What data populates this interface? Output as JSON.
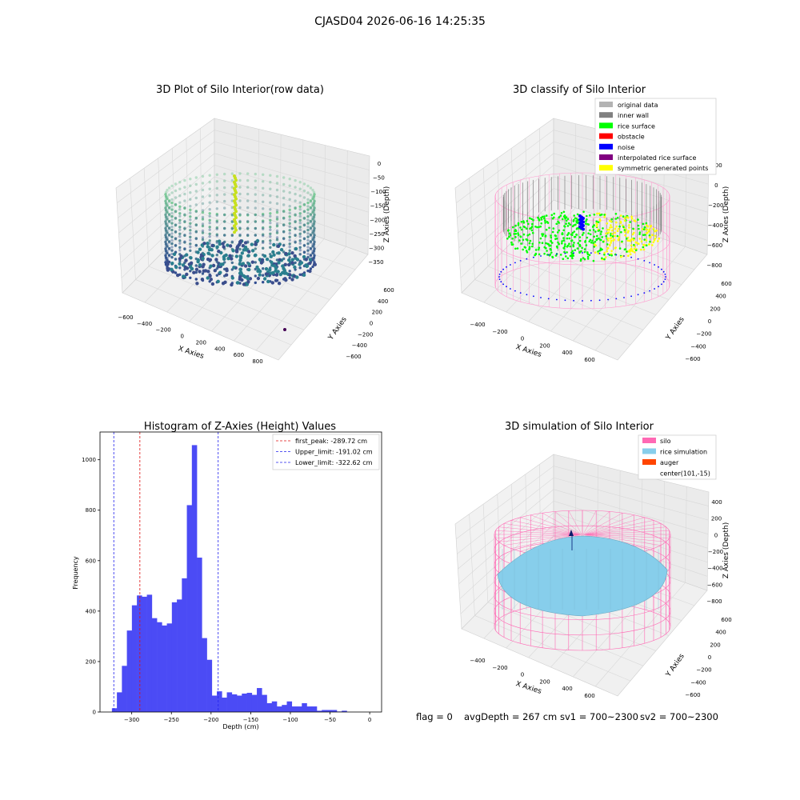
{
  "suptitle": "CJASD04 2026-06-16 14:25:35",
  "colors": {
    "histogram_bars": "#4b4bf5",
    "first_peak_line": "#e01010",
    "limit_lines": "#2020ee",
    "original_data": "#b3b3b3",
    "inner_wall": "#808080",
    "rice_surface": "#00ff00",
    "obstacle": "#ff0000",
    "noise": "#0000ff",
    "interpolated_rice_surface": "#800080",
    "symmetric_generated_points": "#ffff00",
    "silo": "#ff69b4",
    "rice_simulation": "#87ceeb",
    "auger": "#ff4500"
  },
  "panels": {
    "raw": {
      "title": "3D Plot of Silo Interior(row data)",
      "xlabel": "X Axies",
      "ylabel": "Y Axies",
      "zlabel": "Z Axies (Depth)",
      "x_ticks": [
        "−600",
        "−400",
        "−200",
        "0",
        "200",
        "400",
        "600",
        "800"
      ],
      "y_ticks": [
        "−600",
        "−400",
        "−200",
        "0",
        "200",
        "400",
        "600"
      ],
      "z_ticks": [
        "0",
        "−50",
        "−100",
        "−150",
        "−200",
        "−250",
        "−300",
        "−350"
      ]
    },
    "classify": {
      "title": "3D classify of Silo Interior",
      "xlabel": "X Axies",
      "ylabel": "Y Axies",
      "zlabel": "Z Axies (Depth)",
      "x_ticks": [
        "−400",
        "−200",
        "0",
        "200",
        "400",
        "600"
      ],
      "y_ticks": [
        "−600",
        "−400",
        "−200",
        "0",
        "200",
        "400",
        "600"
      ],
      "z_ticks": [
        "200",
        "0",
        "−200",
        "−400",
        "−600",
        "−800"
      ],
      "legend": [
        {
          "label": "original data",
          "color_key": "original_data"
        },
        {
          "label": "inner wall",
          "color_key": "inner_wall"
        },
        {
          "label": "rice surface",
          "color_key": "rice_surface"
        },
        {
          "label": "obstacle",
          "color_key": "obstacle"
        },
        {
          "label": "noise",
          "color_key": "noise"
        },
        {
          "label": "interpolated rice surface",
          "color_key": "interpolated_rice_surface"
        },
        {
          "label": "symmetric generated points",
          "color_key": "symmetric_generated_points"
        }
      ]
    },
    "simulation": {
      "title": "3D simulation of Silo Interior",
      "xlabel": "X Axies",
      "ylabel": "Y Axies",
      "zlabel": "Z Axies (Depth)",
      "x_ticks": [
        "−400",
        "−200",
        "0",
        "200",
        "400",
        "600"
      ],
      "y_ticks": [
        "−600",
        "−400",
        "−200",
        "0",
        "200",
        "400",
        "600"
      ],
      "z_ticks": [
        "400",
        "200",
        "0",
        "−200",
        "−400",
        "−600",
        "−800"
      ],
      "legend": [
        {
          "label": "silo",
          "color_key": "silo"
        },
        {
          "label": "rice simulation",
          "color_key": "rice_simulation"
        },
        {
          "label": "auger",
          "color_key": "auger"
        },
        {
          "label": "center(101,-15)",
          "color_key": ""
        }
      ]
    }
  },
  "status_line": {
    "flag": "flag = 0",
    "avg_depth": "avgDepth = 267 cm",
    "sv1": "sv1 = 700~2300",
    "sv2": "sv2 = 700~2300"
  },
  "chart_data": [
    {
      "type": "bar",
      "title": "Histogram of Z-Axies (Height) Values",
      "xlabel": "Depth (cm)",
      "ylabel": "Frequency",
      "xlim": [
        -340,
        15
      ],
      "ylim": [
        0,
        1110
      ],
      "x_ticks": [
        -300,
        -250,
        -200,
        -150,
        -100,
        -50,
        0
      ],
      "y_ticks": [
        0,
        200,
        400,
        600,
        800,
        1000
      ],
      "bin_start": -325,
      "bin_width": 6.3,
      "values": [
        15,
        78,
        183,
        323,
        423,
        462,
        457,
        465,
        372,
        356,
        343,
        351,
        435,
        446,
        530,
        820,
        1058,
        612,
        293,
        207,
        65,
        82,
        57,
        78,
        70,
        65,
        73,
        76,
        68,
        95,
        68,
        35,
        42,
        22,
        28,
        42,
        22,
        22,
        35,
        22,
        22,
        5,
        8,
        8,
        8,
        2,
        5
      ],
      "vlines": [
        {
          "x": -289.72,
          "label": "first_peak: -289.72 cm",
          "color_key": "first_peak_line"
        },
        {
          "x": -191.02,
          "label": "Upper_limit: -191.02 cm",
          "color_key": "limit_lines"
        },
        {
          "x": -322.62,
          "label": "Lower_limit: -322.62 cm",
          "color_key": "limit_lines"
        }
      ],
      "legend_placement": "top-right"
    }
  ]
}
